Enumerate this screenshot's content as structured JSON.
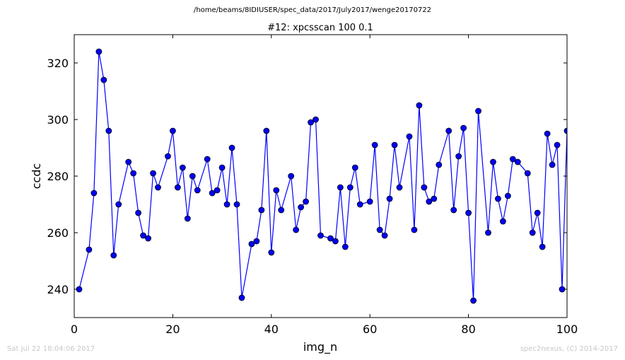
{
  "header": {
    "file_path": "/home/beams/8IDIUSER/spec_data/2017/July2017/wenge20170722"
  },
  "footer": {
    "timestamp": "Sat Jul 22 18:04:06 2017",
    "credit": "spec2nexus, (C) 2014-2017"
  },
  "chart_data": {
    "type": "line",
    "title": "#12: xpcsscan 100 0.1",
    "xlabel": "img_n",
    "ylabel": "ccdc",
    "xlim": [
      0,
      100
    ],
    "ylim": [
      230,
      330
    ],
    "xticks": [
      0,
      20,
      40,
      60,
      80,
      100
    ],
    "yticks": [
      240,
      260,
      280,
      300,
      320
    ],
    "grid": false,
    "legend": "none",
    "colors": {
      "line": "#0000ff",
      "marker": "#0000ff",
      "marker_edge": "#000000"
    },
    "series": [
      {
        "x": [
          1,
          3,
          4,
          5,
          6,
          7,
          8,
          9,
          11,
          12,
          13,
          14,
          15,
          16,
          17,
          19,
          20,
          21,
          22,
          23,
          24,
          25,
          27,
          28,
          29,
          30,
          31,
          32,
          33,
          34,
          36,
          37,
          38,
          39,
          40,
          41,
          42,
          44,
          45,
          46,
          47,
          48,
          49,
          50,
          52,
          53,
          54,
          55,
          56,
          57,
          58,
          60,
          61,
          62,
          63,
          64,
          65,
          66,
          68,
          69,
          70,
          71,
          72,
          73,
          74,
          76,
          77,
          78,
          79,
          80,
          81,
          82,
          84,
          85,
          86,
          87,
          88,
          89,
          90,
          92,
          93,
          94,
          95,
          96,
          97,
          98,
          99,
          100
        ],
        "y": [
          240,
          254,
          274,
          324,
          314,
          296,
          252,
          270,
          285,
          281,
          267,
          259,
          258,
          281,
          276,
          287,
          296,
          276,
          283,
          265,
          280,
          275,
          286,
          274,
          275,
          283,
          270,
          290,
          270,
          237,
          256,
          257,
          268,
          296,
          253,
          275,
          268,
          280,
          261,
          269,
          271,
          299,
          300,
          259,
          258,
          257,
          276,
          255,
          276,
          283,
          270,
          271,
          291,
          261,
          259,
          272,
          291,
          276,
          294,
          261,
          305,
          276,
          271,
          272,
          284,
          296,
          268,
          287,
          297,
          267,
          236,
          303,
          260,
          285,
          272,
          264,
          273,
          286,
          285,
          281,
          260,
          267,
          255,
          295,
          284,
          291,
          240,
          296
        ]
      }
    ]
  }
}
